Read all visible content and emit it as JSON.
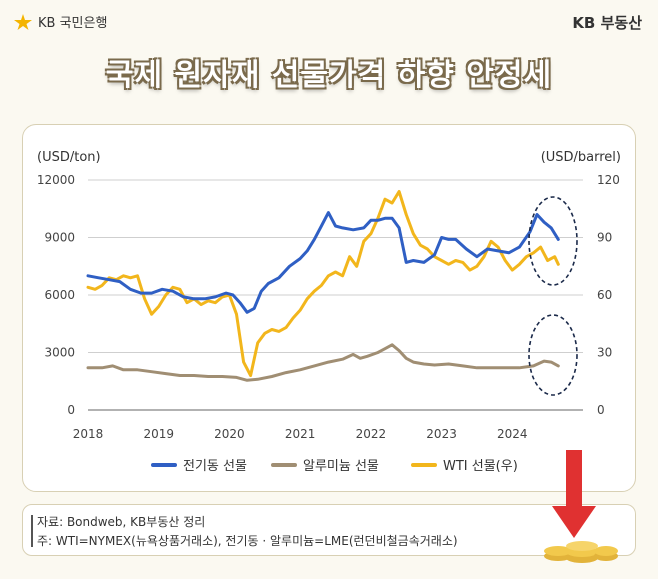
{
  "header": {
    "logo_text": "KB 국민은행",
    "brand_right": "KB 부동산"
  },
  "title": "국제 원자재 선물가격 하향 안정세",
  "source": {
    "line1": "자료: Bondweb, KB부동산 정리",
    "line2": "주: WTI=NYMEX(뉴욕상품거래소), 전기동 · 알루미늄=LME(런던비철금속거래소)"
  },
  "colors": {
    "copper": "#2f5fc4",
    "aluminum": "#a08e73",
    "wti": "#f2b61c",
    "arrow": "#e03131"
  },
  "chart_data": {
    "type": "line",
    "x_range": [
      2018,
      2025
    ],
    "x_ticks": [
      "2018",
      "2019",
      "2020",
      "2021",
      "2022",
      "2023",
      "2024"
    ],
    "y_left_label": "(USD/ton)",
    "y_right_label": "(USD/barrel)",
    "y_left_ticks": [
      "12000",
      "9000",
      "6000",
      "3000",
      "0"
    ],
    "y_right_ticks": [
      "120",
      "90",
      "60",
      "30",
      "0"
    ],
    "y_left_range": [
      0,
      12000
    ],
    "y_right_range": [
      0,
      120
    ],
    "grid": true,
    "legend_position": "bottom",
    "series": [
      {
        "name": "전기동 선물",
        "axis": "left",
        "color_key": "copper",
        "x": [
          2018.0,
          2018.15,
          2018.3,
          2018.45,
          2018.6,
          2018.75,
          2018.9,
          2019.05,
          2019.2,
          2019.35,
          2019.5,
          2019.65,
          2019.8,
          2019.95,
          2020.05,
          2020.15,
          2020.25,
          2020.35,
          2020.45,
          2020.55,
          2020.7,
          2020.85,
          2021.0,
          2021.1,
          2021.2,
          2021.3,
          2021.4,
          2021.5,
          2021.6,
          2021.75,
          2021.9,
          2022.0,
          2022.1,
          2022.2,
          2022.3,
          2022.4,
          2022.5,
          2022.6,
          2022.75,
          2022.9,
          2023.0,
          2023.1,
          2023.2,
          2023.35,
          2023.5,
          2023.65,
          2023.8,
          2023.95,
          2024.1,
          2024.25,
          2024.35,
          2024.45,
          2024.55,
          2024.65
        ],
        "values": [
          7000,
          6900,
          6800,
          6700,
          6300,
          6100,
          6100,
          6300,
          6200,
          5900,
          5800,
          5800,
          5900,
          6100,
          6000,
          5600,
          5100,
          5300,
          6200,
          6600,
          6900,
          7500,
          7900,
          8300,
          8900,
          9600,
          10300,
          9600,
          9500,
          9400,
          9500,
          9900,
          9900,
          10000,
          10000,
          9500,
          7700,
          7800,
          7700,
          8100,
          9000,
          8900,
          8900,
          8400,
          8000,
          8400,
          8300,
          8200,
          8500,
          9300,
          10200,
          9800,
          9500,
          8900
        ]
      },
      {
        "name": "알루미늄 선물",
        "axis": "left",
        "color_key": "aluminum",
        "x": [
          2018.0,
          2018.2,
          2018.35,
          2018.5,
          2018.7,
          2018.9,
          2019.1,
          2019.3,
          2019.5,
          2019.7,
          2019.9,
          2020.1,
          2020.25,
          2020.4,
          2020.6,
          2020.8,
          2021.0,
          2021.2,
          2021.4,
          2021.6,
          2021.75,
          2021.85,
          2021.95,
          2022.1,
          2022.2,
          2022.3,
          2022.4,
          2022.5,
          2022.6,
          2022.75,
          2022.9,
          2023.1,
          2023.3,
          2023.5,
          2023.7,
          2023.9,
          2024.1,
          2024.3,
          2024.45,
          2024.55,
          2024.65
        ],
        "values": [
          2200,
          2200,
          2300,
          2100,
          2100,
          2000,
          1900,
          1800,
          1800,
          1750,
          1750,
          1700,
          1550,
          1600,
          1750,
          1950,
          2100,
          2300,
          2500,
          2650,
          2900,
          2700,
          2800,
          3000,
          3200,
          3400,
          3100,
          2700,
          2500,
          2400,
          2350,
          2400,
          2300,
          2200,
          2200,
          2200,
          2200,
          2300,
          2550,
          2500,
          2300
        ]
      },
      {
        "name": "WTI 선물(우)",
        "axis": "right",
        "color_key": "wti",
        "x": [
          2018.0,
          2018.1,
          2018.2,
          2018.3,
          2018.4,
          2018.5,
          2018.6,
          2018.7,
          2018.8,
          2018.9,
          2019.0,
          2019.1,
          2019.2,
          2019.3,
          2019.4,
          2019.5,
          2019.6,
          2019.7,
          2019.8,
          2019.9,
          2020.0,
          2020.1,
          2020.2,
          2020.3,
          2020.4,
          2020.5,
          2020.6,
          2020.7,
          2020.8,
          2020.9,
          2021.0,
          2021.1,
          2021.2,
          2021.3,
          2021.4,
          2021.5,
          2021.6,
          2021.7,
          2021.8,
          2021.9,
          2022.0,
          2022.1,
          2022.2,
          2022.3,
          2022.4,
          2022.5,
          2022.6,
          2022.7,
          2022.8,
          2022.9,
          2023.0,
          2023.1,
          2023.2,
          2023.3,
          2023.4,
          2023.5,
          2023.6,
          2023.7,
          2023.8,
          2023.9,
          2024.0,
          2024.1,
          2024.2,
          2024.3,
          2024.4,
          2024.5,
          2024.6,
          2024.65
        ],
        "values": [
          64,
          63,
          65,
          69,
          68,
          70,
          69,
          70,
          58,
          50,
          54,
          60,
          64,
          63,
          56,
          58,
          55,
          57,
          56,
          59,
          60,
          50,
          25,
          18,
          35,
          40,
          42,
          41,
          43,
          48,
          52,
          58,
          62,
          65,
          70,
          72,
          70,
          80,
          75,
          88,
          92,
          100,
          110,
          108,
          114,
          102,
          92,
          86,
          84,
          80,
          78,
          76,
          78,
          77,
          73,
          75,
          80,
          88,
          85,
          78,
          73,
          76,
          80,
          82,
          85,
          78,
          80,
          76
        ]
      }
    ]
  }
}
